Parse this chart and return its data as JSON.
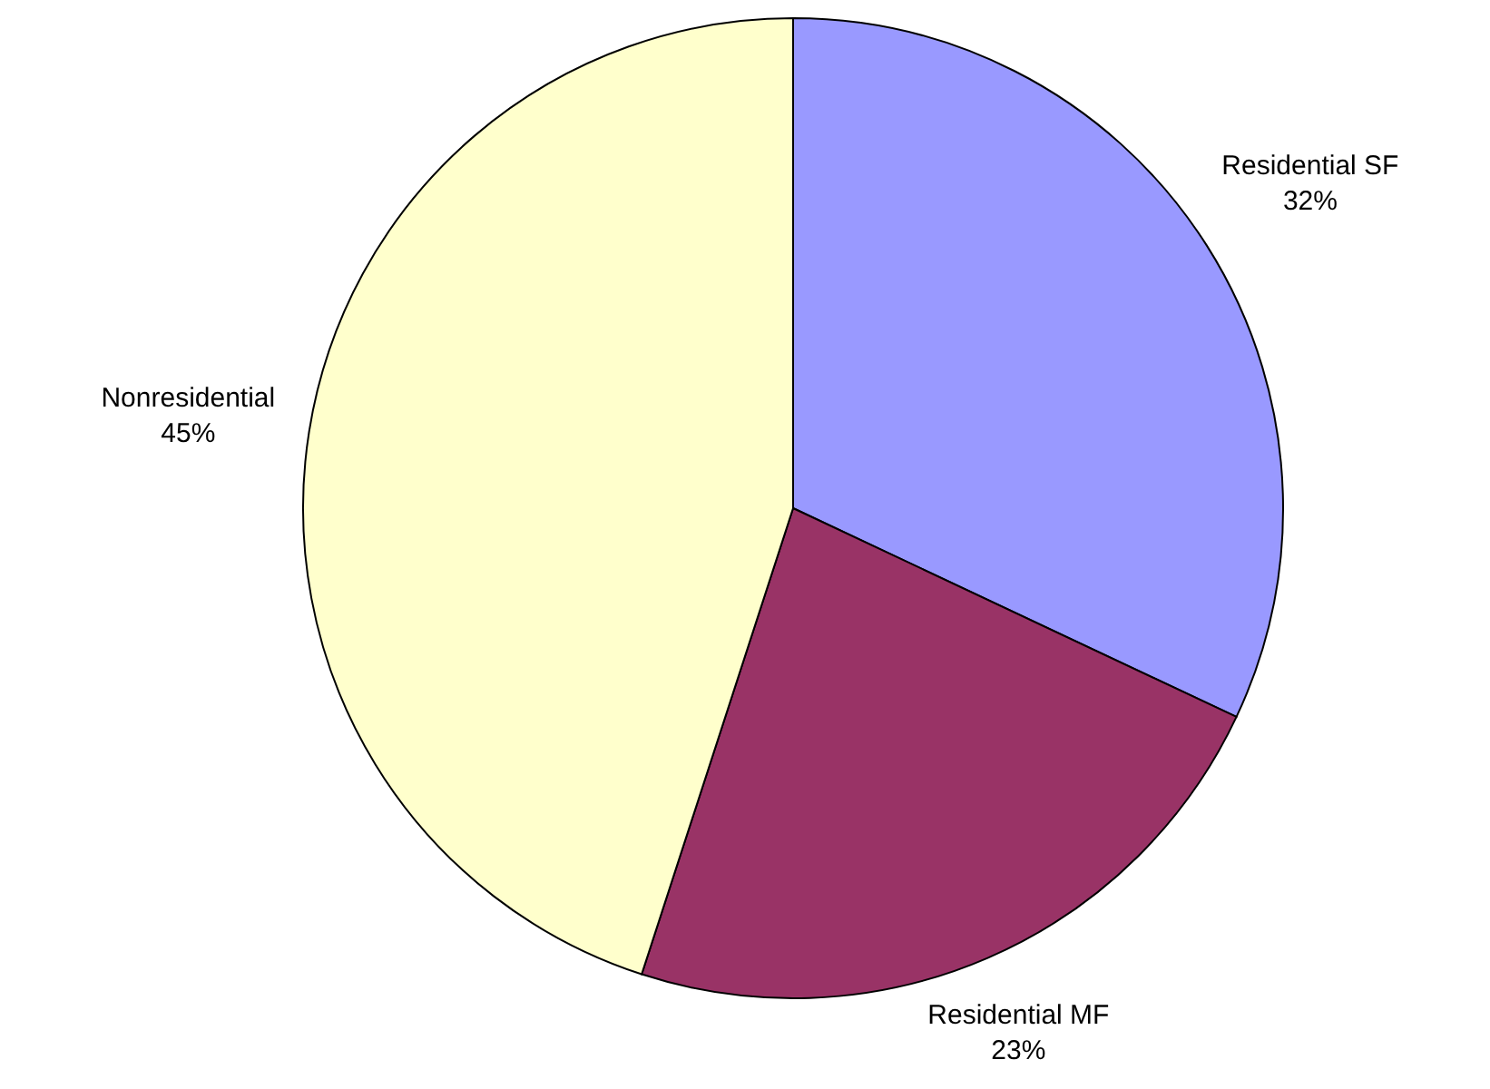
{
  "chart_data": {
    "type": "pie",
    "categories": [
      "Residential SF",
      "Residential MF",
      "Nonresidential"
    ],
    "values": [
      32,
      23,
      45
    ],
    "value_labels": [
      "32%",
      "23%",
      "45%"
    ],
    "colors": [
      "#9999ff",
      "#993366",
      "#ffffcc"
    ]
  }
}
